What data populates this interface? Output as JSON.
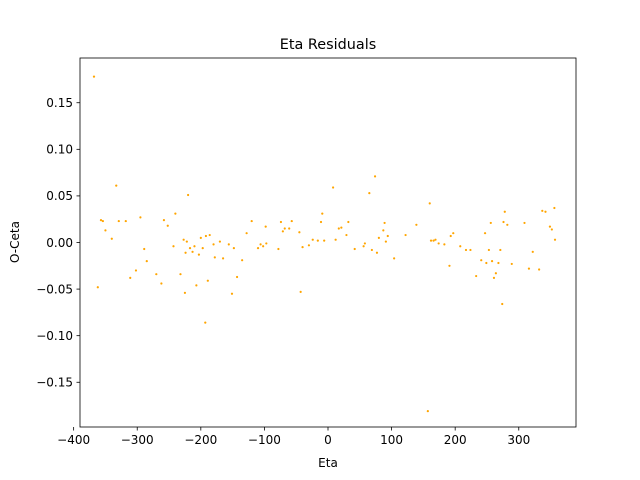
{
  "chart_data": {
    "type": "scatter",
    "title": "Eta Residuals",
    "xlabel": "Eta",
    "ylabel": "O-Ceta",
    "xlim": [
      -390,
      390
    ],
    "ylim": [
      -0.198,
      0.198
    ],
    "xticks": [
      -400,
      -300,
      -200,
      -100,
      0,
      100,
      200,
      300
    ],
    "yticks": [
      -0.15,
      -0.1,
      -0.05,
      0.0,
      0.05,
      0.1,
      0.15
    ],
    "xtick_labels": [
      "−400",
      "−300",
      "−200",
      "−100",
      "0",
      "100",
      "200",
      "300"
    ],
    "ytick_labels": [
      "−0.15",
      "−0.10",
      "−0.05",
      "0.00",
      "0.05",
      "0.10",
      "0.15"
    ],
    "grid": false,
    "point_color": "#ffa500",
    "series": [
      {
        "points": [
          [
            -368,
            0.178
          ],
          [
            -362,
            -0.048
          ],
          [
            -357,
            0.024
          ],
          [
            -354,
            0.023
          ],
          [
            -350,
            0.013
          ],
          [
            -340,
            0.004
          ],
          [
            -333,
            0.061
          ],
          [
            -329,
            0.023
          ],
          [
            -318,
            0.023
          ],
          [
            -311,
            -0.038
          ],
          [
            -302,
            -0.03
          ],
          [
            -295,
            0.027
          ],
          [
            -289,
            -0.007
          ],
          [
            -285,
            -0.02
          ],
          [
            -270,
            -0.034
          ],
          [
            -262,
            -0.044
          ],
          [
            -258,
            0.024
          ],
          [
            -252,
            0.018
          ],
          [
            -243,
            -0.004
          ],
          [
            -240,
            0.031
          ],
          [
            -232,
            -0.034
          ],
          [
            -227,
            0.003
          ],
          [
            -225,
            -0.054
          ],
          [
            -224,
            -0.011
          ],
          [
            -222,
            0.001
          ],
          [
            -220,
            0.051
          ],
          [
            -217,
            -0.006
          ],
          [
            -213,
            -0.01
          ],
          [
            -210,
            -0.004
          ],
          [
            -207,
            -0.046
          ],
          [
            -203,
            -0.013
          ],
          [
            -200,
            0.005
          ],
          [
            -197,
            -0.006
          ],
          [
            -193,
            -0.086
          ],
          [
            -192,
            0.007
          ],
          [
            -189,
            -0.041
          ],
          [
            -186,
            0.008
          ],
          [
            -180,
            -0.002
          ],
          [
            -178,
            -0.016
          ],
          [
            -170,
            0.001
          ],
          [
            -165,
            -0.017
          ],
          [
            -156,
            -0.002
          ],
          [
            -151,
            -0.055
          ],
          [
            -148,
            -0.006
          ],
          [
            -143,
            -0.037
          ],
          [
            -135,
            -0.019
          ],
          [
            -128,
            0.01
          ],
          [
            -120,
            0.023
          ],
          [
            -110,
            -0.006
          ],
          [
            -106,
            -0.002
          ],
          [
            -102,
            -0.004
          ],
          [
            -98,
            0.017
          ],
          [
            -97,
            -0.001
          ],
          [
            -78,
            -0.007
          ],
          [
            -74,
            0.022
          ],
          [
            -71,
            0.012
          ],
          [
            -68,
            0.015
          ],
          [
            -61,
            0.015
          ],
          [
            -57,
            0.023
          ],
          [
            -45,
            0.011
          ],
          [
            -43,
            -0.053
          ],
          [
            -40,
            -0.005
          ],
          [
            -30,
            -0.003
          ],
          [
            -24,
            0.003
          ],
          [
            -16,
            0.002
          ],
          [
            -11,
            0.022
          ],
          [
            -9,
            0.031
          ],
          [
            -6,
            0.002
          ],
          [
            8,
            0.059
          ],
          [
            12,
            0.003
          ],
          [
            17,
            0.015
          ],
          [
            21,
            0.016
          ],
          [
            29,
            0.008
          ],
          [
            32,
            0.022
          ],
          [
            42,
            -0.007
          ],
          [
            56,
            -0.004
          ],
          [
            58,
            -0.001
          ],
          [
            65,
            0.053
          ],
          [
            69,
            -0.008
          ],
          [
            74,
            0.071
          ],
          [
            77,
            -0.011
          ],
          [
            80,
            0.005
          ],
          [
            87,
            0.013
          ],
          [
            89,
            0.021
          ],
          [
            91,
            0.001
          ],
          [
            94,
            0.007
          ],
          [
            104,
            -0.017
          ],
          [
            122,
            0.008
          ],
          [
            139,
            0.019
          ],
          [
            157,
            -0.181
          ],
          [
            160,
            0.042
          ],
          [
            162,
            0.002
          ],
          [
            166,
            0.002
          ],
          [
            169,
            0.003
          ],
          [
            174,
            -0.001
          ],
          [
            183,
            -0.002
          ],
          [
            191,
            -0.025
          ],
          [
            193,
            0.007
          ],
          [
            197,
            0.01
          ],
          [
            208,
            -0.004
          ],
          [
            217,
            -0.008
          ],
          [
            224,
            -0.008
          ],
          [
            233,
            -0.036
          ],
          [
            241,
            -0.019
          ],
          [
            247,
            0.01
          ],
          [
            249,
            -0.022
          ],
          [
            253,
            -0.008
          ],
          [
            256,
            0.021
          ],
          [
            258,
            -0.02
          ],
          [
            261,
            -0.038
          ],
          [
            264,
            -0.033
          ],
          [
            268,
            -0.022
          ],
          [
            271,
            -0.008
          ],
          [
            274,
            -0.066
          ],
          [
            276,
            0.022
          ],
          [
            278,
            0.033
          ],
          [
            282,
            0.019
          ],
          [
            289,
            -0.023
          ],
          [
            309,
            0.021
          ],
          [
            316,
            -0.028
          ],
          [
            322,
            -0.01
          ],
          [
            332,
            -0.029
          ],
          [
            337,
            0.034
          ],
          [
            342,
            0.033
          ],
          [
            349,
            0.017
          ],
          [
            352,
            0.014
          ],
          [
            356,
            0.037
          ],
          [
            357,
            0.003
          ]
        ]
      }
    ]
  }
}
